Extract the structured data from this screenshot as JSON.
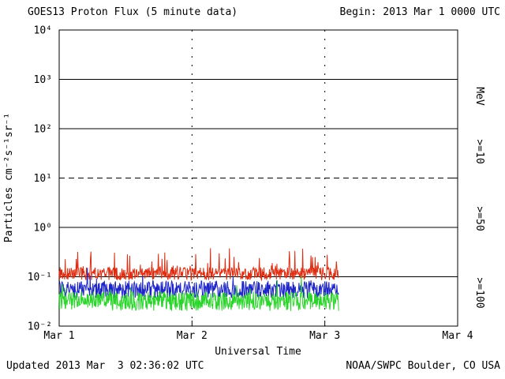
{
  "chart_data": {
    "type": "line",
    "title": "GOES13 Proton Flux (5 minute data)",
    "begin_label": "Begin: 2013 Mar 1 0000 UTC",
    "xlabel": "Universal Time",
    "ylabel": "Particles cm⁻²s⁻¹sr⁻¹",
    "unit_label": "MeV",
    "y_axis": {
      "scale": "log",
      "ylim_exp": [
        -2,
        4
      ],
      "ticks": [
        {
          "exp": 4,
          "label": "10⁴",
          "grid": "none"
        },
        {
          "exp": 3,
          "label": "10³",
          "grid": "solid"
        },
        {
          "exp": 2,
          "label": "10²",
          "grid": "solid"
        },
        {
          "exp": 1,
          "label": "10¹",
          "grid": "dashed"
        },
        {
          "exp": 0,
          "label": "10⁰",
          "grid": "solid"
        },
        {
          "exp": -1,
          "label": "10⁻¹",
          "grid": "solid"
        },
        {
          "exp": -2,
          "label": "10⁻²",
          "grid": "none"
        }
      ]
    },
    "x_axis": {
      "xlim_days": [
        0,
        3
      ],
      "ticks": [
        {
          "day": 0,
          "label": "Mar 1",
          "vline": false
        },
        {
          "day": 1,
          "label": "Mar 2",
          "vline": true
        },
        {
          "day": 2,
          "label": "Mar 3",
          "vline": true
        },
        {
          "day": 3,
          "label": "Mar 4",
          "vline": false
        }
      ]
    },
    "series": [
      {
        "name": ">=10",
        "color": "#dd2c10",
        "baseline_flux": 0.115,
        "approx_range": [
          0.07,
          0.45
        ],
        "jitter_log": 0.13,
        "spike_prob": 0.1,
        "spike_mag": 0.45
      },
      {
        "name": ">=50",
        "color": "#1d24c8",
        "baseline_flux": 0.055,
        "approx_range": [
          0.03,
          0.2
        ],
        "jitter_log": 0.18,
        "spike_prob": 0.05,
        "spike_mag": 0.35
      },
      {
        "name": ">=100",
        "color": "#2bd42b",
        "baseline_flux": 0.032,
        "approx_range": [
          0.016,
          0.1
        ],
        "jitter_log": 0.2,
        "spike_prob": 0.04,
        "spike_mag": 0.35
      }
    ],
    "sampling": {
      "cadence_minutes": 5,
      "points_per_day": 288,
      "data_end_day": 2.108,
      "seed": 20130301
    },
    "footer": {
      "updated": "Updated 2013 Mar  3 02:36:02 UTC",
      "source": "NOAA/SWPC Boulder, CO USA"
    }
  }
}
